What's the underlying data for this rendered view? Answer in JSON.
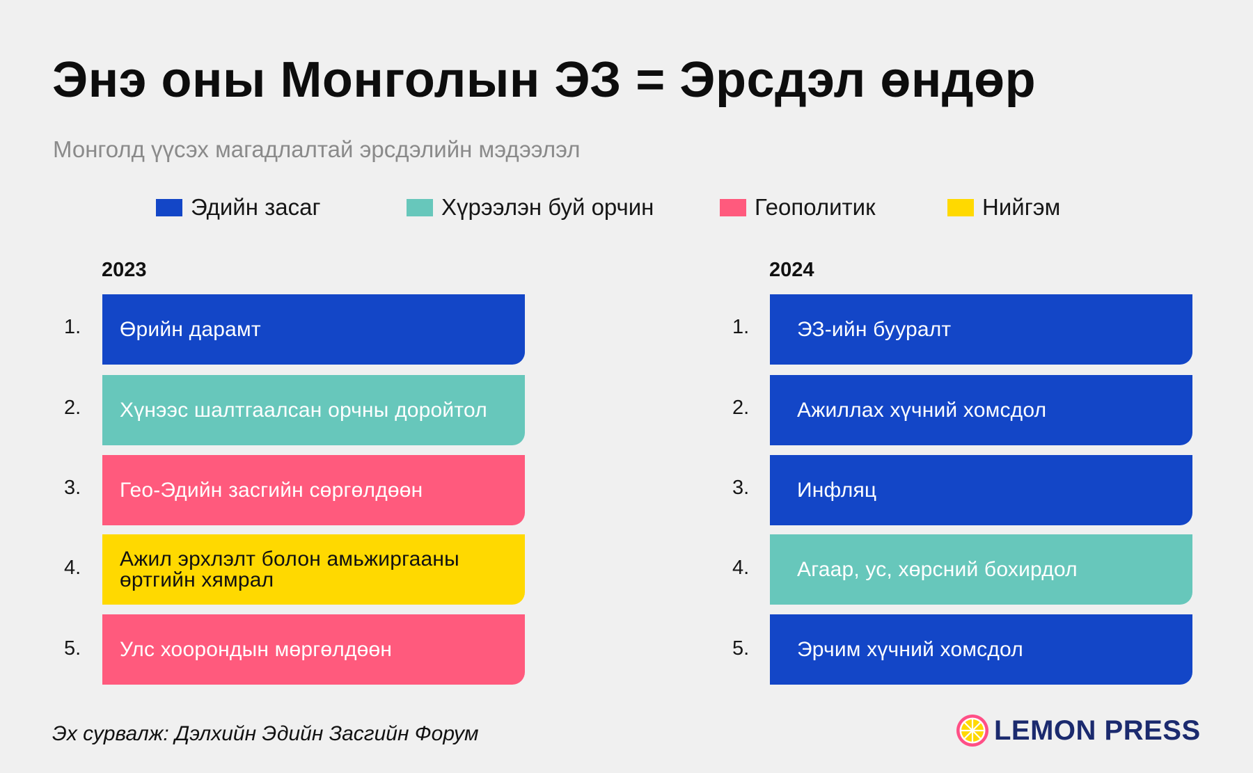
{
  "title": "Энэ оны Монголын ЭЗ = Эрсдэл өндөр",
  "subtitle": "Монголд үүсэх магадлалтай эрсдэлийн мэдээлэл",
  "legend": [
    {
      "label": "Эдийн засаг",
      "color": "#1346c7"
    },
    {
      "label": "Хүрээлэн буй орчин",
      "color": "#67c7bb"
    },
    {
      "label": "Геополитик",
      "color": "#ff5a7d"
    },
    {
      "label": "Нийгэм",
      "color": "#ffd900"
    }
  ],
  "columns": [
    {
      "year": "2023",
      "items": [
        {
          "rank": "1.",
          "label": "Өрийн дарамт",
          "category": "Эдийн засаг"
        },
        {
          "rank": "2.",
          "label": "Хүнээс шалтгаалсан орчны доройтол",
          "category": "Хүрээлэн буй орчин"
        },
        {
          "rank": "3.",
          "label": "Гео-Эдийн засгийн сөргөлдөөн",
          "category": "Геополитик"
        },
        {
          "rank": "4.",
          "label": "Ажил эрхлэлт болон амьжиргааны өртгийн хямрал",
          "category": "Нийгэм"
        },
        {
          "rank": "5.",
          "label": "Улс хоорондын мөргөлдөөн",
          "category": "Геополитик"
        }
      ]
    },
    {
      "year": "2024",
      "items": [
        {
          "rank": "1.",
          "label": "ЭЗ-ийн бууралт",
          "category": "Эдийн засаг"
        },
        {
          "rank": "2.",
          "label": "Ажиллах хүчний хомсдол",
          "category": "Эдийн засаг"
        },
        {
          "rank": "3.",
          "label": "Инфляц",
          "category": "Эдийн засаг"
        },
        {
          "rank": "4.",
          "label": "Агаар, ус, хөрсний бохирдол",
          "category": "Хүрээлэн буй орчин"
        },
        {
          "rank": "5.",
          "label": "Эрчим хүчний хомсдол",
          "category": "Эдийн засаг"
        }
      ]
    }
  ],
  "source": "Эх сурвалж: Дэлхийн Эдийн Засгийн Форум",
  "brand": "LEMON PRESS",
  "brand_icon": "lemon-slice-icon",
  "text_dark": "#111111",
  "text_light": "#ffffff"
}
